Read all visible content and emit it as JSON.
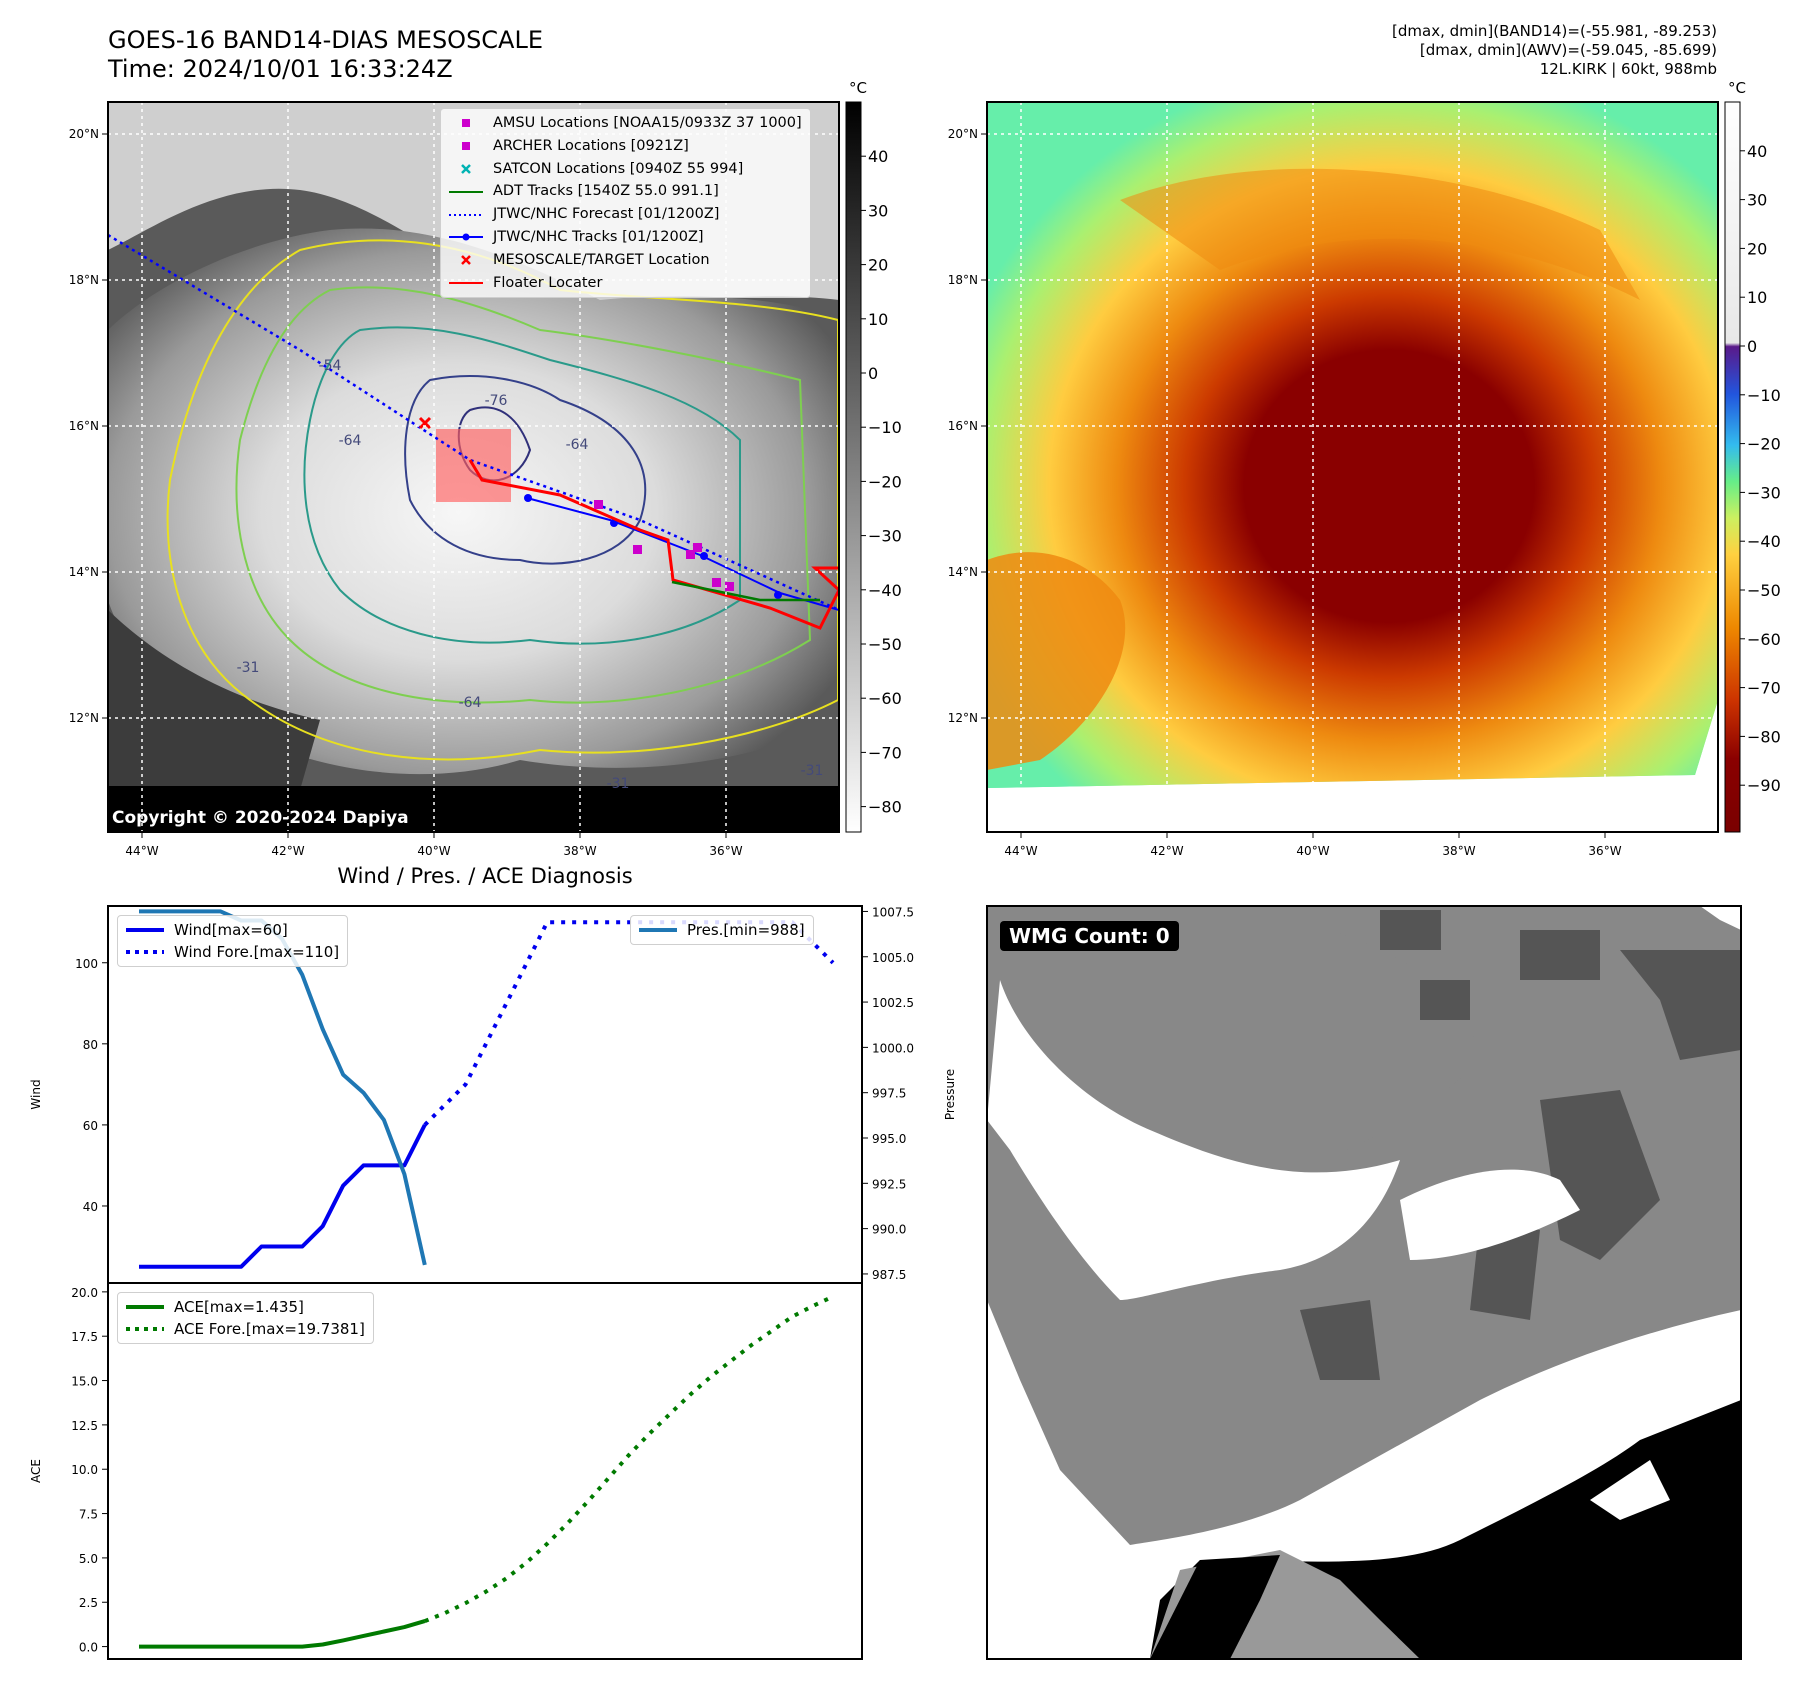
{
  "header": {
    "title_line1": "GOES-16 BAND14-DIAS MESOSCALE",
    "title_line2": "Time: 2024/10/01 16:33:24Z",
    "info_line1": "[dmax, dmin](BAND14)=(-55.981, -89.253)",
    "info_line2": "[dmax, dmin](AWV)=(-59.045, -85.699)",
    "info_line3": "12L.KIRK | 60kt, 988mb"
  },
  "map_axes": {
    "lon_ticks": [
      "44°W",
      "42°W",
      "40°W",
      "38°W",
      "36°W"
    ],
    "lat_ticks": [
      "20°N",
      "18°N",
      "16°N",
      "14°N",
      "12°N"
    ]
  },
  "colorbar_left": {
    "unit": "°C",
    "ticks": [
      "40",
      "30",
      "20",
      "10",
      "0",
      "−10",
      "−20",
      "−30",
      "−40",
      "−50",
      "−60",
      "−70",
      "−80"
    ]
  },
  "colorbar_right": {
    "unit": "°C",
    "ticks": [
      "40",
      "30",
      "20",
      "10",
      "0",
      "−10",
      "−20",
      "−30",
      "−40",
      "−50",
      "−60",
      "−70",
      "−80",
      "−90"
    ]
  },
  "map_legend": [
    {
      "label": "AMSU Locations [NOAA15/0933Z 37 1000]",
      "color": "#cc00cc",
      "marker": "square"
    },
    {
      "label": "ARCHER Locations [0921Z]",
      "color": "#cc00cc",
      "marker": "square"
    },
    {
      "label": "SATCON Locations [0940Z 55 994]",
      "color": "#00b3b3",
      "marker": "x"
    },
    {
      "label": "ADT Tracks [1540Z 55.0 991.1]",
      "color": "#007a00",
      "marker": "line"
    },
    {
      "label": "JTWC/NHC Forecast [01/1200Z]",
      "color": "#0000ff",
      "marker": "dotted"
    },
    {
      "label": "JTWC/NHC Tracks [01/1200Z]",
      "color": "#0000ff",
      "marker": "line-dot"
    },
    {
      "label": "MESOSCALE/TARGET Location",
      "color": "#ff0000",
      "marker": "x"
    },
    {
      "label": "Floater Locater",
      "color": "#ff0000",
      "marker": "line"
    }
  ],
  "contour_labels": [
    "-76",
    "-64",
    "-54",
    "-64",
    "-31",
    "-31",
    "-31",
    "-64"
  ],
  "copyright": "Copyright © 2020-2024 Dapiya",
  "wmg": {
    "label": "WMG Count: 0"
  },
  "chart_data": [
    {
      "type": "line",
      "title": "Wind / Pres. / ACE Diagnosis",
      "ylabel": "Wind",
      "ylabel_right": "Pressure",
      "ylim": [
        21,
        114
      ],
      "ylim_right": [
        987,
        1007.8
      ],
      "yticks": [
        40,
        60,
        80,
        100
      ],
      "yticks_right": [
        "987.5",
        "990.0",
        "992.5",
        "995.0",
        "997.5",
        "1000.0",
        "1002.5",
        "1005.0",
        "1007.5"
      ],
      "x_count": 35,
      "series": [
        {
          "name": "Wind[max=60]",
          "style": "solid",
          "color": "#0000ee",
          "x0": 0,
          "values": [
            25,
            25,
            25,
            25,
            25,
            25,
            30,
            30,
            30,
            35,
            45,
            50,
            50,
            50,
            60
          ]
        },
        {
          "name": "Wind Fore.[max=110]",
          "style": "dotted",
          "color": "#0000ee",
          "x0": 14,
          "values": [
            60,
            65,
            70,
            80,
            90,
            100,
            110,
            110,
            110,
            110,
            110,
            110,
            110,
            110,
            110,
            110,
            110,
            110,
            110,
            105,
            100
          ]
        },
        {
          "name": "Pres.[min=988]",
          "style": "solid",
          "color": "#1f77b4",
          "axis": "right",
          "x0": 0,
          "values": [
            1007.5,
            1007.5,
            1007.5,
            1007.5,
            1007.5,
            1007,
            1007,
            1006,
            1004,
            1001,
            998.5,
            997.5,
            996,
            993,
            988
          ]
        }
      ]
    },
    {
      "type": "line",
      "ylabel": "ACE",
      "ylim": [
        -0.7,
        20.5
      ],
      "yticks": [
        "0.0",
        "2.5",
        "5.0",
        "7.5",
        "10.0",
        "12.5",
        "15.0",
        "17.5",
        "20.0"
      ],
      "x_count": 35,
      "series": [
        {
          "name": "ACE[max=1.435]",
          "style": "solid",
          "color": "#007a00",
          "x0": 0,
          "values": [
            0,
            0,
            0,
            0,
            0,
            0,
            0,
            0,
            0,
            0.12,
            0.35,
            0.6,
            0.85,
            1.1,
            1.435
          ]
        },
        {
          "name": "ACE Fore.[max=19.7381]",
          "style": "dotted",
          "color": "#007a00",
          "x0": 14,
          "values": [
            1.435,
            1.9,
            2.45,
            3.1,
            3.85,
            4.75,
            5.8,
            6.95,
            8.2,
            9.5,
            10.8,
            12.0,
            13.1,
            14.2,
            15.2,
            16.1,
            17.0,
            17.8,
            18.6,
            19.2,
            19.7381
          ]
        }
      ]
    }
  ]
}
